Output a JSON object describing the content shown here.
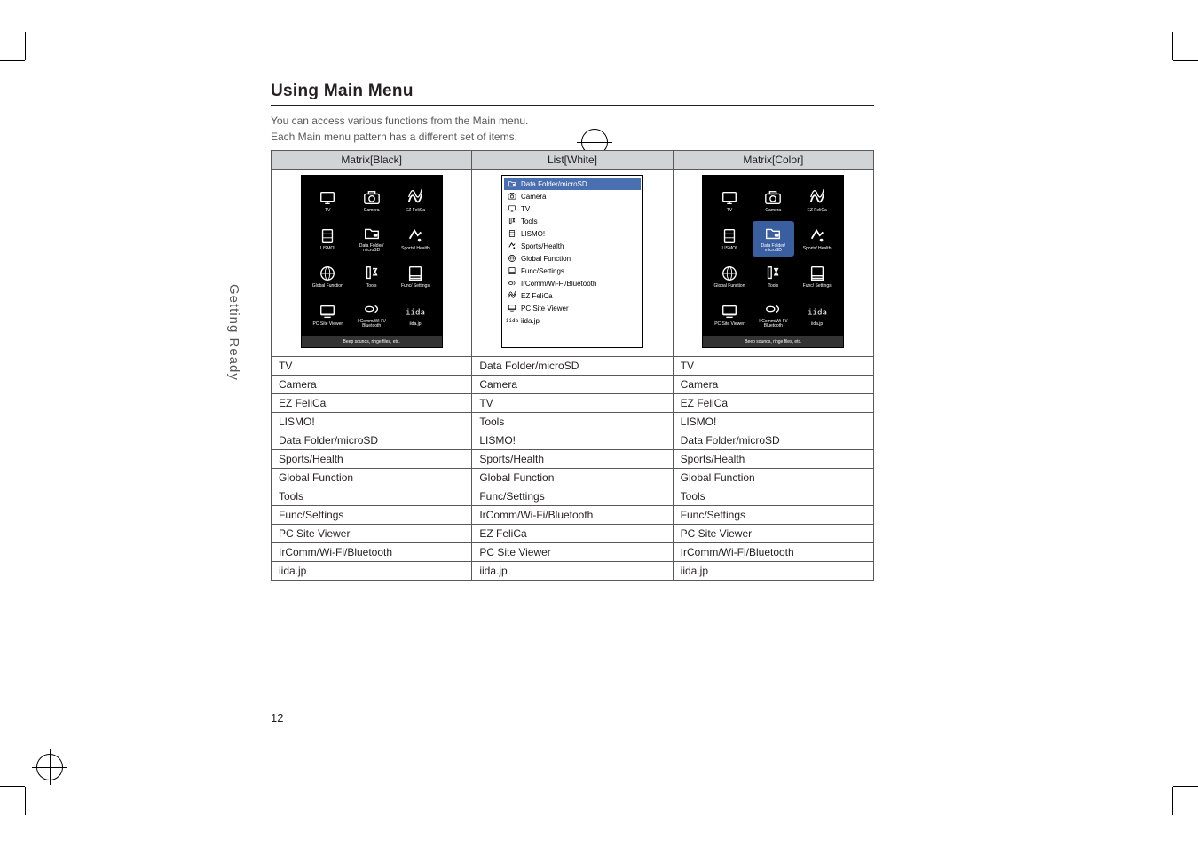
{
  "heading": "Using Main Menu",
  "intro_line1": "You can access various functions from the Main menu.",
  "intro_line2": "Each Main menu pattern has a different set of items.",
  "sidebar_label": "Getting Ready",
  "page_number": "12",
  "columns": {
    "col1": "Matrix[Black]",
    "col2": "List[White]",
    "col3": "Matrix[Color]"
  },
  "matrix_items": [
    {
      "label": "TV",
      "icon": "tv"
    },
    {
      "label": "Camera",
      "icon": "camera"
    },
    {
      "label": "EZ FeliCa",
      "icon": "felica"
    },
    {
      "label": "LISMO!",
      "icon": "lismo"
    },
    {
      "label": "Data Folder/\nmicroSD",
      "icon": "folder"
    },
    {
      "label": "Sports/\nHealth",
      "icon": "sports"
    },
    {
      "label": "Global\nFunction",
      "icon": "globe"
    },
    {
      "label": "Tools",
      "icon": "tools"
    },
    {
      "label": "Func/\nSettings",
      "icon": "settings"
    },
    {
      "label": "PC Site\nViewer",
      "icon": "pcsite"
    },
    {
      "label": "IrComm/Wi-Fi/\nBluetooth",
      "icon": "wireless"
    },
    {
      "label": "iida.jp",
      "icon": "iida"
    }
  ],
  "list_items": [
    {
      "label": "Data Folder/microSD",
      "selected": true
    },
    {
      "label": "Camera"
    },
    {
      "label": "TV"
    },
    {
      "label": "Tools"
    },
    {
      "label": "LISMO!"
    },
    {
      "label": "Sports/Health"
    },
    {
      "label": "Global Function"
    },
    {
      "label": "Func/Settings"
    },
    {
      "label": "IrComm/Wi-Fi/Bluetooth"
    },
    {
      "label": "EZ FeliCa"
    },
    {
      "label": "PC Site Viewer"
    },
    {
      "label": "iida.jp"
    }
  ],
  "footer_text": "Beep sounds, ringe files, etc.",
  "rows": [
    {
      "c1": "TV",
      "c2": "Data Folder/microSD",
      "c3": "TV"
    },
    {
      "c1": "Camera",
      "c2": "Camera",
      "c3": "Camera"
    },
    {
      "c1": "EZ FeliCa",
      "c2": "TV",
      "c3": "EZ FeliCa"
    },
    {
      "c1": "LISMO!",
      "c2": "Tools",
      "c3": "LISMO!"
    },
    {
      "c1": "Data Folder/microSD",
      "c2": "LISMO!",
      "c3": "Data Folder/microSD"
    },
    {
      "c1": "Sports/Health",
      "c2": "Sports/Health",
      "c3": "Sports/Health"
    },
    {
      "c1": "Global Function",
      "c2": "Global Function",
      "c3": "Global Function"
    },
    {
      "c1": "Tools",
      "c2": "Func/Settings",
      "c3": "Tools"
    },
    {
      "c1": "Func/Settings",
      "c2": "IrComm/Wi-Fi/Bluetooth",
      "c3": "Func/Settings"
    },
    {
      "c1": "PC Site Viewer",
      "c2": "EZ FeliCa",
      "c3": "PC Site Viewer"
    },
    {
      "c1": "IrComm/Wi-Fi/Bluetooth",
      "c2": "PC Site Viewer",
      "c3": "IrComm/Wi-Fi/Bluetooth"
    },
    {
      "c1": "iida.jp",
      "c2": "iida.jp",
      "c3": "iida.jp"
    }
  ],
  "colors": {
    "text": "#231f20",
    "muted": "#58595b",
    "header_bg": "#d1d3d4",
    "border": "#58595b",
    "highlight": "#3a5fa0",
    "list_sel": "#4a6fb0"
  }
}
